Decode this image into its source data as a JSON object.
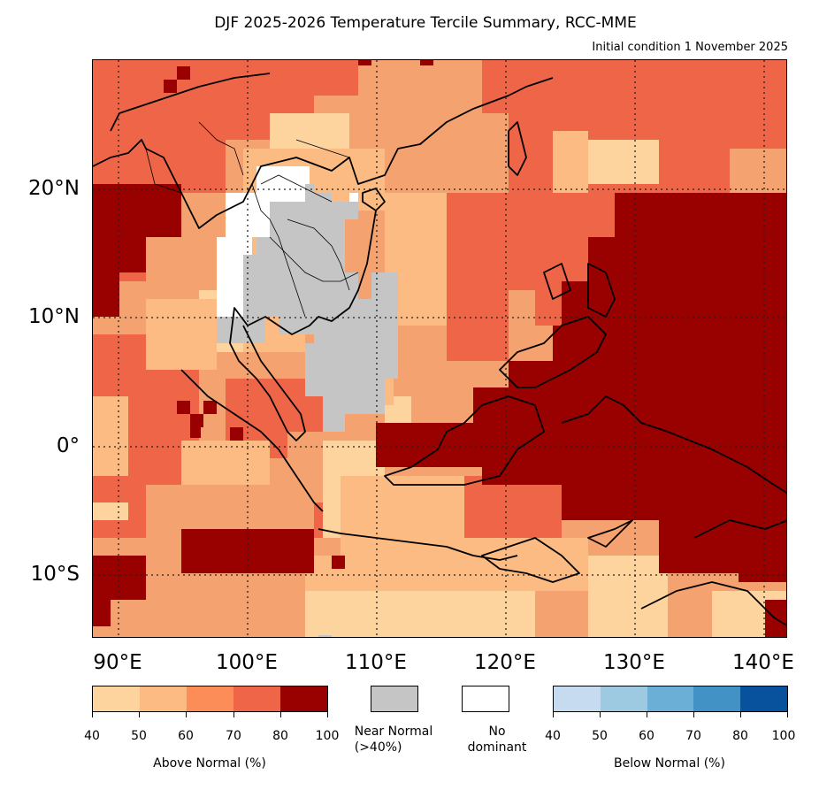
{
  "header": {
    "title": "DJF 2025-2026 Temperature Tercile Summary, RCC-MME",
    "subtitle": "Initial condition 1 November 2025"
  },
  "map": {
    "lat_labels": [
      "20°N",
      "10°N",
      "0°",
      "10°S"
    ],
    "lon_labels": [
      "90°E",
      "100°E",
      "110°E",
      "120°E",
      "130°E",
      "140°E"
    ],
    "lon_range": [
      88,
      142
    ],
    "lat_range": [
      -15,
      30
    ]
  },
  "legend": {
    "above_normal": {
      "title": "Above Normal (%)",
      "ticks": [
        "40",
        "50",
        "60",
        "70",
        "80",
        "100"
      ],
      "colors": [
        "#fdd49e",
        "#fdbb84",
        "#fc8d59",
        "#ef6548",
        "#990000"
      ]
    },
    "near_normal": {
      "label_line1": "Near Normal",
      "label_line2": "(>40%)",
      "color": "#c5c5c5"
    },
    "no_dominant": {
      "label_line1": "No",
      "label_line2": "dominant",
      "color": "#ffffff"
    },
    "below_normal": {
      "title": "Below Normal (%)",
      "ticks": [
        "40",
        "50",
        "60",
        "70",
        "80",
        "100"
      ],
      "colors": [
        "#c6dbef",
        "#9ecae1",
        "#6baed6",
        "#4292c6",
        "#08519c"
      ]
    }
  }
}
